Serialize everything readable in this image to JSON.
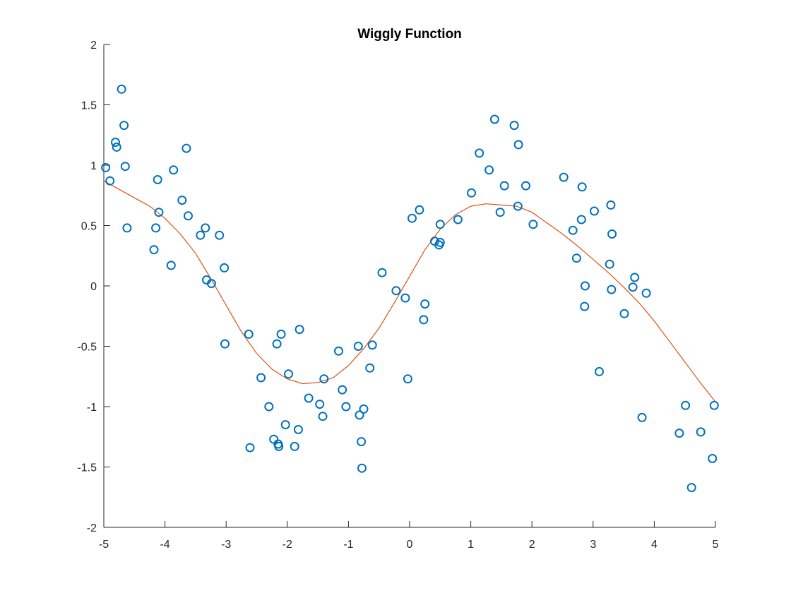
{
  "chart_data": {
    "type": "scatter",
    "title": "Wiggly Function",
    "xlabel": "",
    "ylabel": "",
    "xlim": [
      -5,
      5
    ],
    "ylim": [
      -2,
      2
    ],
    "xticks": [
      -5,
      -4,
      -3,
      -2,
      -1,
      0,
      1,
      2,
      3,
      4,
      5
    ],
    "yticks": [
      -2,
      -1.5,
      -1,
      -0.5,
      0,
      0.5,
      1,
      1.5,
      2
    ],
    "xtick_labels": [
      "-5",
      "-4",
      "-3",
      "-2",
      "-1",
      "0",
      "1",
      "2",
      "3",
      "4",
      "5"
    ],
    "ytick_labels": [
      "-2",
      "-1.5",
      "-1",
      "-0.5",
      "0",
      "0.5",
      "1",
      "1.5",
      "2"
    ],
    "grid": false,
    "colors": {
      "markers": "#0072BD",
      "curve": "#D95319",
      "axes": "#262626"
    },
    "series": [
      {
        "kind": "scatter",
        "marker": "o",
        "points": [
          [
            -4.97,
            0.98
          ],
          [
            -4.9,
            0.87
          ],
          [
            -4.81,
            1.19
          ],
          [
            -4.79,
            1.15
          ],
          [
            -4.71,
            1.63
          ],
          [
            -4.67,
            1.33
          ],
          [
            -4.65,
            0.99
          ],
          [
            -4.62,
            0.48
          ],
          [
            -4.18,
            0.3
          ],
          [
            -4.15,
            0.48
          ],
          [
            -4.12,
            0.88
          ],
          [
            -4.1,
            0.61
          ],
          [
            -3.9,
            0.17
          ],
          [
            -3.86,
            0.96
          ],
          [
            -3.72,
            0.71
          ],
          [
            -3.65,
            1.14
          ],
          [
            -3.62,
            0.58
          ],
          [
            -3.42,
            0.42
          ],
          [
            -3.34,
            0.48
          ],
          [
            -3.32,
            0.05
          ],
          [
            -3.24,
            0.02
          ],
          [
            -3.11,
            0.42
          ],
          [
            -3.03,
            0.15
          ],
          [
            -3.02,
            -0.48
          ],
          [
            -2.63,
            -0.4
          ],
          [
            -2.61,
            -1.34
          ],
          [
            -2.43,
            -0.76
          ],
          [
            -2.3,
            -1.0
          ],
          [
            -2.22,
            -1.27
          ],
          [
            -2.17,
            -0.48
          ],
          [
            -2.15,
            -1.31
          ],
          [
            -2.14,
            -1.33
          ],
          [
            -2.1,
            -0.4
          ],
          [
            -2.03,
            -1.15
          ],
          [
            -1.98,
            -0.73
          ],
          [
            -1.88,
            -1.33
          ],
          [
            -1.82,
            -1.19
          ],
          [
            -1.8,
            -0.36
          ],
          [
            -1.65,
            -0.93
          ],
          [
            -1.47,
            -0.98
          ],
          [
            -1.42,
            -1.08
          ],
          [
            -1.4,
            -0.77
          ],
          [
            -1.16,
            -0.54
          ],
          [
            -1.1,
            -0.86
          ],
          [
            -1.04,
            -1.0
          ],
          [
            -0.84,
            -0.5
          ],
          [
            -0.82,
            -1.07
          ],
          [
            -0.79,
            -1.29
          ],
          [
            -0.78,
            -1.51
          ],
          [
            -0.75,
            -1.02
          ],
          [
            -0.65,
            -0.68
          ],
          [
            -0.61,
            -0.49
          ],
          [
            -0.45,
            0.11
          ],
          [
            -0.22,
            -0.04
          ],
          [
            -0.07,
            -0.1
          ],
          [
            -0.03,
            -0.77
          ],
          [
            0.04,
            0.56
          ],
          [
            0.16,
            0.63
          ],
          [
            0.23,
            -0.28
          ],
          [
            0.25,
            -0.15
          ],
          [
            0.41,
            0.37
          ],
          [
            0.48,
            0.34
          ],
          [
            0.5,
            0.36
          ],
          [
            0.5,
            0.51
          ],
          [
            0.79,
            0.55
          ],
          [
            1.01,
            0.77
          ],
          [
            1.14,
            1.1
          ],
          [
            1.3,
            0.96
          ],
          [
            1.39,
            1.38
          ],
          [
            1.48,
            0.61
          ],
          [
            1.55,
            0.83
          ],
          [
            1.71,
            1.33
          ],
          [
            1.77,
            0.66
          ],
          [
            1.78,
            1.17
          ],
          [
            1.9,
            0.83
          ],
          [
            2.02,
            0.51
          ],
          [
            2.52,
            0.9
          ],
          [
            2.67,
            0.46
          ],
          [
            2.73,
            0.23
          ],
          [
            2.81,
            0.55
          ],
          [
            2.82,
            0.82
          ],
          [
            2.86,
            -0.17
          ],
          [
            2.87,
            0.0
          ],
          [
            3.02,
            0.62
          ],
          [
            3.1,
            -0.71
          ],
          [
            3.27,
            0.18
          ],
          [
            3.29,
            0.67
          ],
          [
            3.3,
            -0.03
          ],
          [
            3.31,
            0.43
          ],
          [
            3.51,
            -0.23
          ],
          [
            3.65,
            -0.01
          ],
          [
            3.68,
            0.07
          ],
          [
            3.8,
            -1.09
          ],
          [
            3.87,
            -0.06
          ],
          [
            4.41,
            -1.22
          ],
          [
            4.51,
            -0.99
          ],
          [
            4.61,
            -1.67
          ],
          [
            4.76,
            -1.21
          ],
          [
            4.95,
            -1.43
          ],
          [
            4.98,
            -0.99
          ]
        ]
      },
      {
        "kind": "line",
        "x": [
          -5,
          -4.75,
          -4.5,
          -4.25,
          -4,
          -3.75,
          -3.5,
          -3.25,
          -3,
          -2.75,
          -2.5,
          -2.25,
          -2,
          -1.75,
          -1.5,
          -1.25,
          -1,
          -0.75,
          -0.5,
          -0.25,
          0,
          0.25,
          0.5,
          0.75,
          1,
          1.25,
          1.5,
          1.75,
          2,
          2.25,
          2.5,
          2.75,
          3,
          3.25,
          3.5,
          3.75,
          4,
          4.25,
          4.5,
          4.75,
          5
        ],
        "y": [
          0.87,
          0.8,
          0.73,
          0.66,
          0.56,
          0.43,
          0.27,
          0.06,
          -0.16,
          -0.38,
          -0.56,
          -0.69,
          -0.77,
          -0.81,
          -0.8,
          -0.76,
          -0.66,
          -0.52,
          -0.35,
          -0.14,
          0.08,
          0.3,
          0.47,
          0.59,
          0.66,
          0.68,
          0.67,
          0.66,
          0.61,
          0.52,
          0.43,
          0.33,
          0.22,
          0.11,
          -0.01,
          -0.14,
          -0.29,
          -0.46,
          -0.63,
          -0.8,
          -0.96
        ]
      }
    ]
  }
}
